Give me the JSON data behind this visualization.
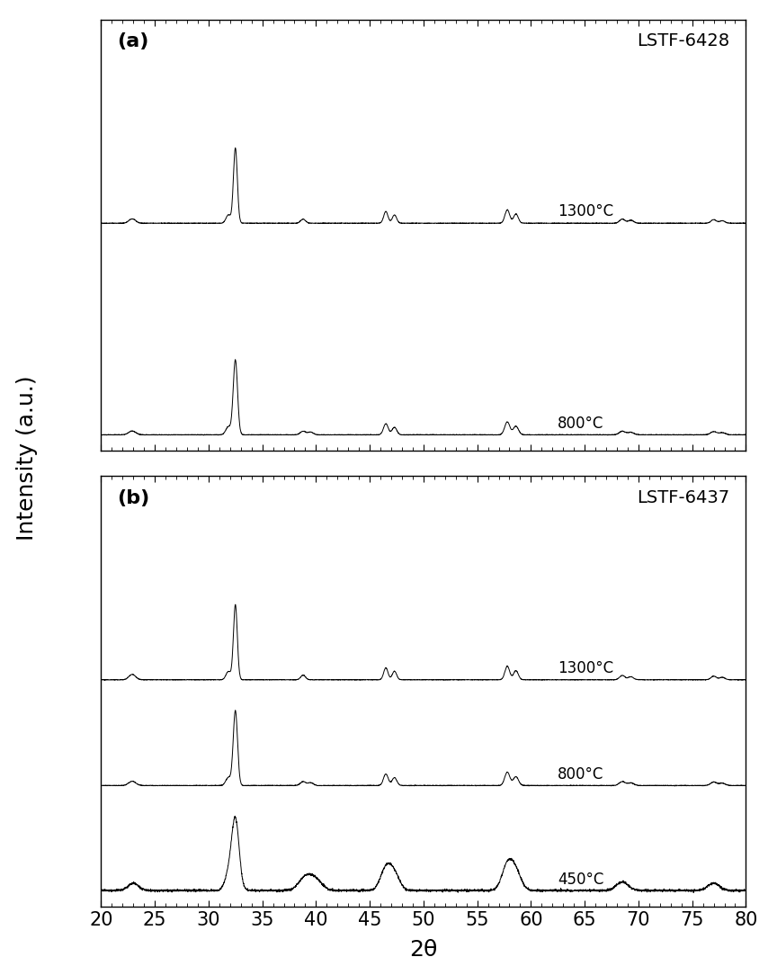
{
  "figure_size": [
    8.64,
    10.84
  ],
  "dpi": 100,
  "background_color": "#ffffff",
  "xlabel": "2θ",
  "ylabel": "Intensity (a.u.)",
  "xlabel_fontsize": 18,
  "ylabel_fontsize": 18,
  "tick_fontsize": 15,
  "xlim": [
    20,
    80
  ],
  "xticks": [
    20,
    25,
    30,
    35,
    40,
    45,
    50,
    55,
    60,
    65,
    70,
    75,
    80
  ],
  "panel_a_label": "(a)",
  "panel_b_label": "(b)",
  "panel_a_title": "LSTF-6428",
  "panel_b_title": "LSTF-6437",
  "panel_a_temps": [
    "1300°C",
    "800°C"
  ],
  "panel_b_temps": [
    "1300°C",
    "800°C",
    "450°C"
  ],
  "line_color": "#000000",
  "noise_amplitude": 0.008,
  "seed": 42,
  "offsets_a": [
    2.8,
    0.0
  ],
  "offsets_b": [
    2.8,
    1.4,
    0.0
  ],
  "ylim_a": [
    -0.2,
    5.5
  ],
  "ylim_b": [
    -0.2,
    5.5
  ],
  "label_fontsize": 16,
  "title_fontsize": 14
}
